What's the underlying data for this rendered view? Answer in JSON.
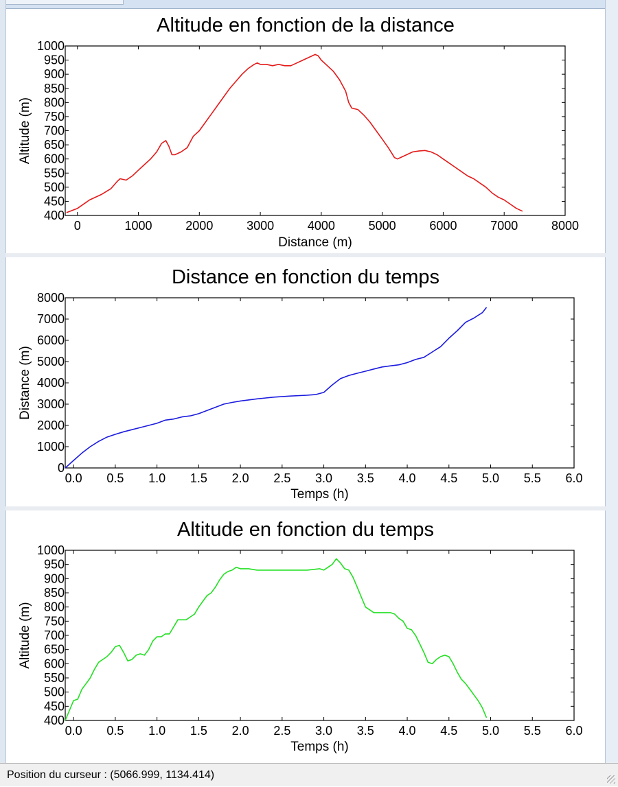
{
  "status_bar": {
    "cursor_text": "Position du curseur : (5066.999, 1134.414)"
  },
  "chart_data": [
    {
      "type": "line",
      "title": "Altitude en fonction de la distance",
      "xlabel": "Distance (m)",
      "ylabel": "Altitude (m)",
      "xlim": [
        -200,
        8000
      ],
      "ylim": [
        400,
        1000
      ],
      "x_ticks": [
        0,
        1000,
        2000,
        3000,
        4000,
        5000,
        6000,
        7000,
        8000
      ],
      "x_tick_labels": [
        "0",
        "1000",
        "2000",
        "3000",
        "4000",
        "5000",
        "6000",
        "7000",
        "8000"
      ],
      "y_ticks": [
        400,
        450,
        500,
        550,
        600,
        650,
        700,
        750,
        800,
        850,
        900,
        950,
        1000
      ],
      "y_tick_labels": [
        "400",
        "450",
        "500",
        "550",
        "600",
        "650",
        "700",
        "750",
        "800",
        "850",
        "900",
        "950",
        "1000"
      ],
      "grid": false,
      "series": [
        {
          "color": "#e41a1a",
          "x": [
            -180,
            0,
            200,
            400,
            550,
            650,
            700,
            800,
            900,
            1000,
            1100,
            1200,
            1300,
            1380,
            1450,
            1500,
            1550,
            1600,
            1700,
            1800,
            1900,
            2000,
            2100,
            2200,
            2300,
            2400,
            2500,
            2600,
            2700,
            2800,
            2900,
            2950,
            3000,
            3100,
            3200,
            3300,
            3400,
            3500,
            3600,
            3700,
            3800,
            3900,
            3950,
            4000,
            4100,
            4200,
            4300,
            4400,
            4450,
            4500,
            4600,
            4700,
            4800,
            4900,
            5000,
            5100,
            5200,
            5250,
            5300,
            5400,
            5500,
            5600,
            5700,
            5800,
            5900,
            6000,
            6100,
            6200,
            6300,
            6400,
            6500,
            6600,
            6700,
            6800,
            6900,
            7000,
            7100,
            7200,
            7300
          ],
          "y": [
            410,
            425,
            455,
            475,
            495,
            520,
            530,
            525,
            540,
            560,
            580,
            600,
            625,
            655,
            665,
            645,
            615,
            615,
            625,
            640,
            680,
            700,
            730,
            760,
            790,
            820,
            850,
            875,
            900,
            920,
            935,
            940,
            935,
            935,
            930,
            935,
            930,
            930,
            940,
            950,
            960,
            970,
            965,
            950,
            930,
            910,
            880,
            840,
            800,
            780,
            775,
            755,
            730,
            700,
            670,
            640,
            605,
            600,
            605,
            615,
            625,
            628,
            630,
            625,
            615,
            600,
            585,
            570,
            555,
            540,
            530,
            515,
            500,
            480,
            465,
            455,
            440,
            425,
            415
          ]
        }
      ]
    },
    {
      "type": "line",
      "title": "Distance en fonction du temps",
      "xlabel": "Temps (h)",
      "ylabel": "Distance (m)",
      "xlim": [
        -0.1,
        6.0
      ],
      "ylim": [
        0,
        8000
      ],
      "x_ticks": [
        0,
        0.5,
        1.0,
        1.5,
        2.0,
        2.5,
        3.0,
        3.5,
        4.0,
        4.5,
        5.0,
        5.5,
        6.0
      ],
      "x_tick_labels": [
        "0.0",
        "0.5",
        "1.0",
        "1.5",
        "2.0",
        "2.5",
        "3.0",
        "3.5",
        "4.0",
        "4.5",
        "5.0",
        "5.5",
        "6.0"
      ],
      "y_ticks": [
        0,
        1000,
        2000,
        3000,
        4000,
        5000,
        6000,
        7000,
        8000
      ],
      "y_tick_labels": [
        "0",
        "1000",
        "2000",
        "3000",
        "4000",
        "5000",
        "6000",
        "7000",
        "8000"
      ],
      "grid": false,
      "series": [
        {
          "color": "#1b1bdf",
          "x": [
            -0.1,
            0.0,
            0.1,
            0.2,
            0.3,
            0.4,
            0.5,
            0.6,
            0.7,
            0.8,
            0.9,
            1.0,
            1.1,
            1.2,
            1.3,
            1.4,
            1.5,
            1.6,
            1.7,
            1.8,
            1.9,
            2.0,
            2.2,
            2.4,
            2.6,
            2.8,
            2.9,
            3.0,
            3.1,
            3.2,
            3.3,
            3.4,
            3.5,
            3.6,
            3.7,
            3.8,
            3.9,
            4.0,
            4.1,
            4.2,
            4.3,
            4.4,
            4.5,
            4.6,
            4.7,
            4.8,
            4.9,
            4.95
          ],
          "y": [
            0,
            350,
            700,
            1000,
            1250,
            1450,
            1580,
            1700,
            1800,
            1900,
            2000,
            2100,
            2250,
            2300,
            2400,
            2450,
            2550,
            2700,
            2850,
            3000,
            3080,
            3150,
            3250,
            3330,
            3380,
            3420,
            3450,
            3550,
            3900,
            4200,
            4350,
            4450,
            4550,
            4650,
            4750,
            4800,
            4850,
            4950,
            5100,
            5200,
            5450,
            5700,
            6100,
            6450,
            6850,
            7050,
            7300,
            7550
          ]
        }
      ]
    },
    {
      "type": "line",
      "title": "Altitude en fonction du temps",
      "xlabel": "Temps (h)",
      "ylabel": "Altitude (m)",
      "xlim": [
        -0.1,
        6.0
      ],
      "ylim": [
        400,
        1000
      ],
      "x_ticks": [
        0,
        0.5,
        1.0,
        1.5,
        2.0,
        2.5,
        3.0,
        3.5,
        4.0,
        4.5,
        5.0,
        5.5,
        6.0
      ],
      "x_tick_labels": [
        "0.0",
        "0.5",
        "1.0",
        "1.5",
        "2.0",
        "2.5",
        "3.0",
        "3.5",
        "4.0",
        "4.5",
        "5.0",
        "5.5",
        "6.0"
      ],
      "y_ticks": [
        400,
        450,
        500,
        550,
        600,
        650,
        700,
        750,
        800,
        850,
        900,
        950,
        1000
      ],
      "y_tick_labels": [
        "400",
        "450",
        "500",
        "550",
        "600",
        "650",
        "700",
        "750",
        "800",
        "850",
        "900",
        "950",
        "1000"
      ],
      "grid": false,
      "series": [
        {
          "color": "#22e022",
          "x": [
            -0.1,
            -0.05,
            0.0,
            0.05,
            0.1,
            0.15,
            0.2,
            0.25,
            0.3,
            0.35,
            0.4,
            0.45,
            0.5,
            0.55,
            0.6,
            0.65,
            0.7,
            0.75,
            0.8,
            0.85,
            0.9,
            0.95,
            1.0,
            1.05,
            1.1,
            1.15,
            1.2,
            1.25,
            1.3,
            1.35,
            1.4,
            1.45,
            1.5,
            1.55,
            1.6,
            1.65,
            1.7,
            1.75,
            1.8,
            1.85,
            1.9,
            1.95,
            2.0,
            2.1,
            2.2,
            2.4,
            2.6,
            2.8,
            2.95,
            3.0,
            3.05,
            3.1,
            3.15,
            3.2,
            3.25,
            3.3,
            3.35,
            3.4,
            3.45,
            3.5,
            3.6,
            3.7,
            3.8,
            3.85,
            3.9,
            3.95,
            4.0,
            4.05,
            4.1,
            4.15,
            4.2,
            4.25,
            4.3,
            4.35,
            4.4,
            4.45,
            4.5,
            4.55,
            4.6,
            4.65,
            4.7,
            4.75,
            4.8,
            4.85,
            4.9,
            4.95
          ],
          "y": [
            400,
            435,
            470,
            475,
            510,
            530,
            550,
            580,
            605,
            615,
            625,
            640,
            660,
            665,
            640,
            610,
            615,
            630,
            635,
            630,
            650,
            680,
            695,
            695,
            705,
            705,
            730,
            755,
            755,
            755,
            765,
            775,
            800,
            820,
            840,
            850,
            870,
            895,
            915,
            925,
            930,
            940,
            935,
            935,
            930,
            930,
            930,
            930,
            935,
            930,
            940,
            950,
            970,
            955,
            935,
            930,
            905,
            870,
            835,
            800,
            780,
            780,
            780,
            775,
            760,
            750,
            725,
            720,
            700,
            670,
            640,
            605,
            600,
            615,
            625,
            630,
            625,
            600,
            570,
            545,
            530,
            510,
            490,
            470,
            445,
            410
          ]
        }
      ]
    }
  ]
}
